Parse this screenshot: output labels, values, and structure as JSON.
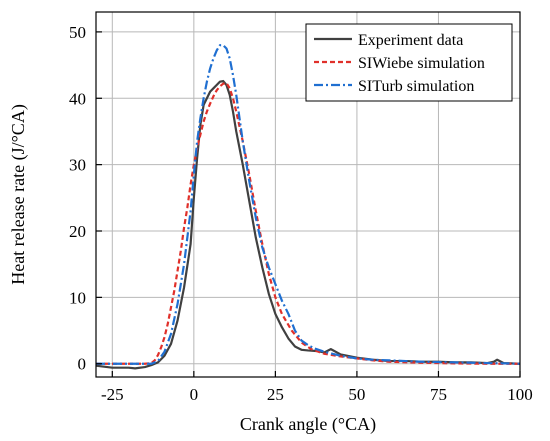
{
  "chart_data": {
    "type": "line",
    "title": "",
    "xlabel": "Crank angle (°CA)",
    "ylabel": "Heat release rate (J/°CA)",
    "xlim": [
      -30,
      100
    ],
    "ylim": [
      -2,
      53
    ],
    "xticks": [
      -25,
      0,
      25,
      50,
      75,
      100
    ],
    "yticks": [
      0,
      10,
      20,
      30,
      40,
      50
    ],
    "grid": true,
    "legend_position": "top-right",
    "series": [
      {
        "name": "Experiment data",
        "color": "#404040",
        "dash": "solid",
        "x": [
          -30,
          -25,
          -20,
          -18,
          -15,
          -13,
          -11,
          -9,
          -7,
          -5,
          -3,
          -1,
          0,
          1,
          2,
          3,
          4,
          5,
          6,
          7,
          8,
          9,
          10,
          11,
          12,
          13,
          15,
          17,
          19,
          21,
          23,
          25,
          27,
          29,
          31,
          33,
          35,
          38,
          40,
          42,
          45,
          50,
          55,
          60,
          65,
          70,
          75,
          80,
          85,
          90,
          92,
          93,
          95,
          100
        ],
        "y": [
          -0.3,
          -0.6,
          -0.6,
          -0.7,
          -0.5,
          -0.2,
          0.2,
          1.2,
          3.0,
          6.5,
          11.5,
          18.0,
          25.0,
          31.0,
          36.0,
          39.0,
          40.0,
          41.0,
          41.5,
          42.0,
          42.5,
          42.6,
          42.0,
          40.5,
          38.0,
          35.0,
          30.0,
          24.5,
          19.0,
          14.5,
          10.5,
          7.5,
          5.5,
          3.8,
          2.6,
          2.1,
          2.0,
          1.9,
          1.7,
          2.2,
          1.4,
          0.9,
          0.6,
          0.4,
          0.4,
          0.3,
          0.3,
          0.2,
          0.2,
          0.1,
          0.3,
          0.6,
          0.1,
          0.0
        ]
      },
      {
        "name": "SIWiebe simulation",
        "color": "#e0302a",
        "dash": "short-dash",
        "x": [
          -30,
          -25,
          -20,
          -15,
          -13,
          -12,
          -11,
          -10,
          -9,
          -8,
          -7,
          -6,
          -5,
          -4,
          -3,
          -2,
          -1,
          0,
          1,
          2,
          3,
          4,
          5,
          6,
          7,
          8,
          9,
          10,
          11,
          12,
          13,
          15,
          17,
          19,
          21,
          23,
          25,
          27,
          30,
          33,
          36,
          40,
          45,
          50,
          55,
          60,
          70,
          80,
          90,
          100
        ],
        "y": [
          0.0,
          0.0,
          0.0,
          0.0,
          0.1,
          0.5,
          1.3,
          2.5,
          4.0,
          6.0,
          8.5,
          11.0,
          14.0,
          17.0,
          20.5,
          23.5,
          27.0,
          30.0,
          32.5,
          34.5,
          36.5,
          38.0,
          39.2,
          40.3,
          41.2,
          41.8,
          42.2,
          42.3,
          41.5,
          40.0,
          38.0,
          33.5,
          28.5,
          23.0,
          18.0,
          13.5,
          10.0,
          7.5,
          5.0,
          3.2,
          2.2,
          1.5,
          1.1,
          0.8,
          0.5,
          0.3,
          0.15,
          0.05,
          0.0,
          0.0
        ]
      },
      {
        "name": "SITurb simulation",
        "color": "#1f6fd1",
        "dash": "dash-dot",
        "x": [
          -30,
          -20,
          -13,
          -11,
          -9,
          -7,
          -5,
          -3,
          -1,
          0,
          1,
          2,
          3,
          4,
          5,
          6,
          7,
          8,
          9,
          10,
          11,
          12,
          13,
          14,
          15,
          17,
          19,
          21,
          23,
          25,
          27,
          29,
          31,
          33,
          35,
          37,
          40,
          45,
          50,
          55,
          60,
          65,
          70,
          80,
          90,
          100
        ],
        "y": [
          0.0,
          0.0,
          0.0,
          0.4,
          1.8,
          4.5,
          9.0,
          15.0,
          23.0,
          28.5,
          33.5,
          37.0,
          40.0,
          42.5,
          44.5,
          46.0,
          47.2,
          48.0,
          48.0,
          47.5,
          46.0,
          43.5,
          40.5,
          37.0,
          33.5,
          27.5,
          22.0,
          17.5,
          14.5,
          12.0,
          9.5,
          7.5,
          5.0,
          3.5,
          2.8,
          2.3,
          1.8,
          1.2,
          0.8,
          0.6,
          0.5,
          0.4,
          0.3,
          0.2,
          0.1,
          0.0
        ]
      }
    ]
  }
}
